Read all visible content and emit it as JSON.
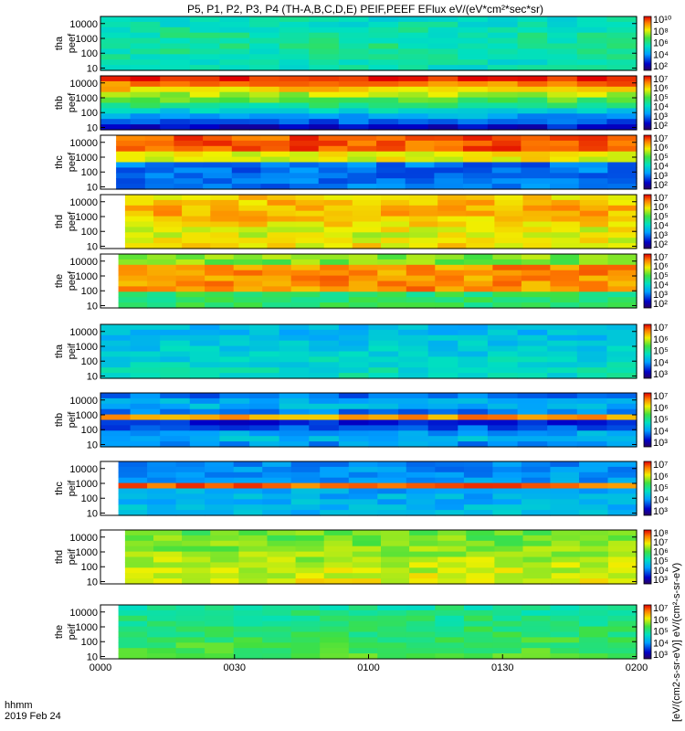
{
  "chart_data": {
    "type": "heatmap",
    "title": "P5, P1, P2, P3, P4 (TH-A,B,C,D,E) PEIF,PEEF EFlux eV/(eV*cm²*sec*sr)",
    "time_axis": {
      "label_line1": "hhmm",
      "label_line2": "2019 Feb 24",
      "ticks": [
        "0000",
        "0030",
        "0100",
        "0130",
        "0200"
      ],
      "range_minutes": [
        0,
        120
      ]
    },
    "y_ticks": [
      "10000",
      "1000",
      "100",
      "10"
    ],
    "y_scale": "log",
    "y_range_eV": [
      7,
      30000
    ],
    "colorbar_label": "[eV/(cm2-s-sr-eV)] eV/(cm²-s-sr-eV)",
    "panels": [
      {
        "ylabel1": "tha",
        "ylabel2": "peef",
        "cbar_ticks": [
          "10¹⁰",
          "10⁸",
          "10⁶",
          "10⁴",
          "10²"
        ],
        "data_start_min": 0
      },
      {
        "ylabel1": "thb",
        "ylabel2": "peef",
        "cbar_ticks": [
          "10⁷",
          "10⁶",
          "10⁵",
          "10⁴",
          "10³",
          "10²"
        ],
        "data_start_min": 0
      },
      {
        "ylabel1": "thc",
        "ylabel2": "peef",
        "cbar_ticks": [
          "10⁷",
          "10⁶",
          "10⁵",
          "10⁴",
          "10³",
          "10²"
        ],
        "data_start_min": 3.5
      },
      {
        "ylabel1": "thd",
        "ylabel2": "peef",
        "cbar_ticks": [
          "10⁷",
          "10⁶",
          "10⁵",
          "10⁴",
          "10³",
          "10²"
        ],
        "data_start_min": 5.5
      },
      {
        "ylabel1": "the",
        "ylabel2": "peef",
        "cbar_ticks": [
          "10⁷",
          "10⁶",
          "10⁵",
          "10⁴",
          "10³",
          "10²"
        ],
        "data_start_min": 4
      },
      {
        "ylabel1": "tha",
        "ylabel2": "peif",
        "cbar_ticks": [
          "10⁷",
          "10⁶",
          "10⁵",
          "10⁴",
          "10³"
        ],
        "data_start_min": 0
      },
      {
        "ylabel1": "thb",
        "ylabel2": "peif",
        "cbar_ticks": [
          "10⁷",
          "10⁶",
          "10⁵",
          "10⁴",
          "10³"
        ],
        "data_start_min": 0
      },
      {
        "ylabel1": "thc",
        "ylabel2": "peif",
        "cbar_ticks": [
          "10⁷",
          "10⁶",
          "10⁵",
          "10⁴",
          "10³"
        ],
        "data_start_min": 4
      },
      {
        "ylabel1": "thd",
        "ylabel2": "peif",
        "cbar_ticks": [
          "10⁸",
          "10⁷",
          "10⁶",
          "10⁵",
          "10⁴",
          "10³"
        ],
        "data_start_min": 5.5
      },
      {
        "ylabel1": "the",
        "ylabel2": "peif",
        "cbar_ticks": [
          "10⁷",
          "10⁶",
          "10⁵",
          "10⁴",
          "10³"
        ],
        "data_start_min": 4
      }
    ]
  }
}
